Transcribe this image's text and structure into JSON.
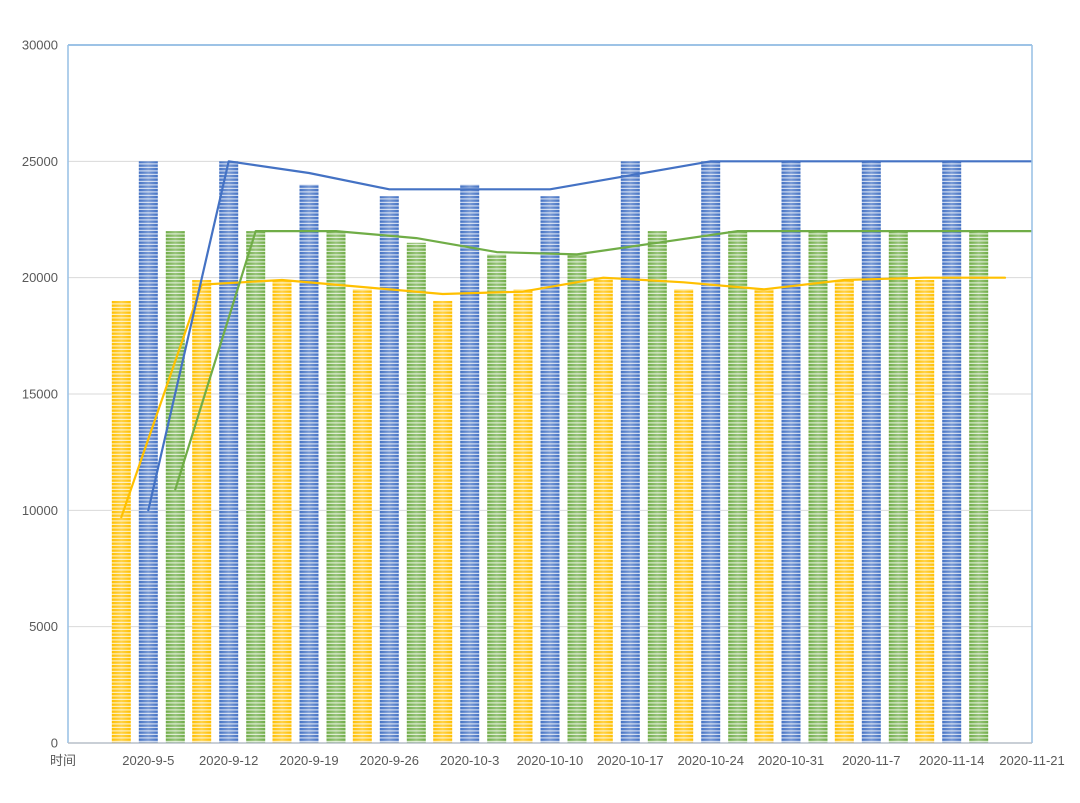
{
  "page": {
    "background": "#ffffff",
    "label_color": "#595959",
    "gridline_color": "#D9D9D9",
    "frame_color": "#9DC3E6",
    "axis_bottom_color": "#B7BFC9"
  },
  "chart_data": {
    "type": "combo-bar-line",
    "title": "",
    "xlabel": "时间",
    "ylabel": "",
    "categories": [
      "时间",
      "2020-9-5",
      "2020-9-12",
      "2020-9-19",
      "2020-9-26",
      "2020-10-3",
      "2020-10-10",
      "2020-10-17",
      "2020-10-24",
      "2020-10-31",
      "2020-11-7",
      "2020-11-14",
      "2020-11-21"
    ],
    "ylim": [
      0,
      30000
    ],
    "yticks": [
      0,
      5000,
      10000,
      15000,
      20000,
      25000,
      30000
    ],
    "grid": true,
    "legend": "none",
    "bar_series": [
      {
        "name": "bar-yellow",
        "color": "#FFC000",
        "values": [
          null,
          19000,
          19900,
          19900,
          19500,
          19000,
          19500,
          20000,
          19500,
          19500,
          19900,
          19900,
          null
        ]
      },
      {
        "name": "bar-blue",
        "color": "#4472C4",
        "values": [
          null,
          25000,
          25000,
          24000,
          23500,
          24000,
          23500,
          25000,
          25000,
          25000,
          25000,
          25000,
          null
        ]
      },
      {
        "name": "bar-green",
        "color": "#70AD47",
        "values": [
          null,
          22000,
          22000,
          22000,
          21500,
          21000,
          21000,
          22000,
          22000,
          22000,
          22000,
          22000,
          null
        ]
      }
    ],
    "line_series": [
      {
        "name": "line-yellow",
        "color": "#FFC000",
        "values": [
          null,
          9700,
          19700,
          19900,
          19600,
          19300,
          19400,
          20000,
          19800,
          19500,
          19900,
          20000,
          20000
        ]
      },
      {
        "name": "line-green",
        "color": "#70AD47",
        "values": [
          null,
          10900,
          22000,
          22000,
          21700,
          21100,
          21000,
          21500,
          22000,
          22000,
          22000,
          22000,
          22000
        ]
      },
      {
        "name": "line-blue",
        "color": "#4472C4",
        "values": [
          null,
          10000,
          25000,
          24500,
          23800,
          23800,
          23800,
          24400,
          25000,
          25000,
          25000,
          25000,
          25000
        ]
      }
    ]
  }
}
